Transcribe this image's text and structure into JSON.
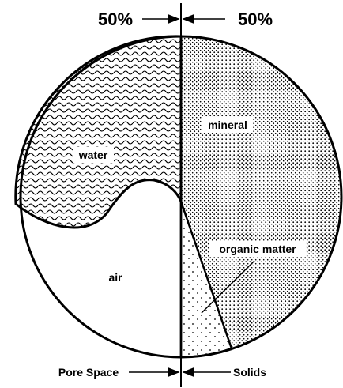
{
  "labels": {
    "pore_percent": "50%",
    "solid_percent": "50%",
    "mineral": "mineral",
    "water": "water",
    "air": "air",
    "organic": "organic matter",
    "pore_space": "Pore Space",
    "solids": "Solids"
  }
}
